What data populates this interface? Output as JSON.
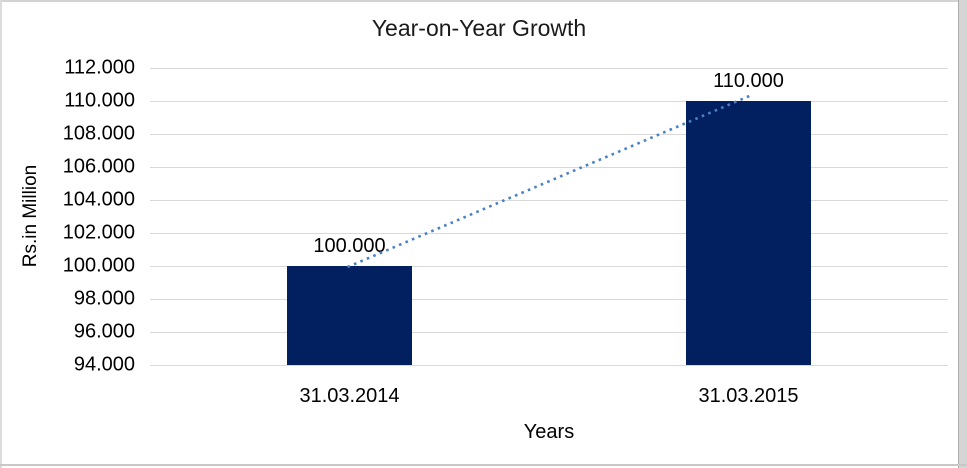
{
  "chart_data": {
    "type": "bar",
    "title": "Year-on-Year Growth",
    "xlabel": "Years",
    "ylabel": "Rs.in Million",
    "categories": [
      "31.03.2014",
      "31.03.2015"
    ],
    "values": [
      100,
      110
    ],
    "value_labels": [
      "100.000",
      "110.000"
    ],
    "y_ticks": [
      "112.000",
      "110.000",
      "108.000",
      "106.000",
      "104.000",
      "102.000",
      "100.000",
      "98.000",
      "96.000",
      "94.000"
    ],
    "ylim": [
      94,
      112
    ],
    "grid": true,
    "legend_position": "none",
    "trendline": {
      "type": "linear",
      "style": "dotted",
      "color": "#4a80c4"
    },
    "colors": {
      "bar": "#022060",
      "gridline": "#d9d9d9",
      "axis_text": "#000000",
      "title_text": "#1a1a1a"
    }
  }
}
